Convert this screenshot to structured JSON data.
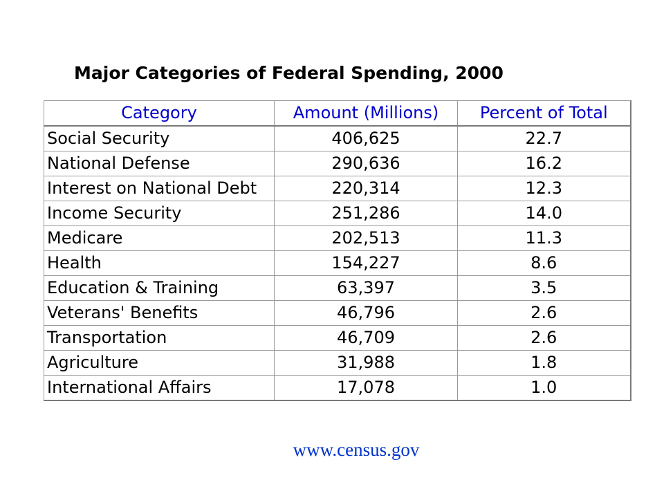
{
  "title": "Major Categories of Federal Spending, 2000",
  "table": {
    "headers": [
      "Category",
      "Amount (Millions)",
      "Percent of Total"
    ],
    "rows": [
      [
        "Social Security",
        "406,625",
        "22.7"
      ],
      [
        "National Defense",
        "290,636",
        "16.2"
      ],
      [
        "Interest on National Debt",
        "220,314",
        "12.3"
      ],
      [
        "Income Security",
        "251,286",
        "14.0"
      ],
      [
        "Medicare",
        "202,513",
        "11.3"
      ],
      [
        "Health",
        "154,227",
        "8.6"
      ],
      [
        "Education & Training",
        "63,397",
        "3.5"
      ],
      [
        "Veterans' Benefits",
        "46,796",
        "2.6"
      ],
      [
        "Transportation",
        "46,709",
        "2.6"
      ],
      [
        "Agriculture",
        "31,988",
        "1.8"
      ],
      [
        "International Affairs",
        "17,078",
        "1.0"
      ]
    ]
  },
  "source": "www.census.gov",
  "colors": {
    "header_text": "#0000cc",
    "source_text": "#0033cc",
    "grid": "#9a9a9a"
  }
}
